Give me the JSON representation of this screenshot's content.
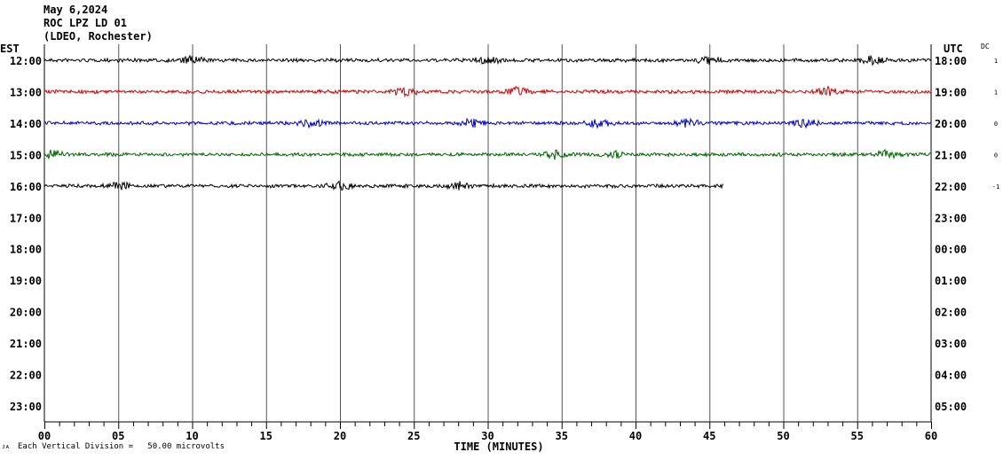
{
  "header": {
    "date": "May 6,2024",
    "station": "ROC LPZ LD 01",
    "network": "(LDEO, Rochester)"
  },
  "left_axis_label": "EST",
  "right_axis_label": "UTC",
  "dc_label": "DC",
  "footer": {
    "scale_note": "Each Vertical Division =   50.00 microvolts",
    "corner_mark": "ᴊᴀ"
  },
  "colors": {
    "background": "#ffffff",
    "grid": "#000000",
    "trace_cycle": [
      "#000000",
      "#cc0000",
      "#0000cc",
      "#006600"
    ]
  },
  "chart_data": {
    "type": "line",
    "title": "",
    "xlabel": "TIME (MINUTES)",
    "ylabel": "",
    "xlim": [
      0,
      60
    ],
    "x_ticks": [
      "00",
      "05",
      "10",
      "15",
      "20",
      "25",
      "30",
      "35",
      "40",
      "45",
      "50",
      "55",
      "60"
    ],
    "rows_est": [
      "12:00",
      "13:00",
      "14:00",
      "15:00",
      "16:00",
      "17:00",
      "18:00",
      "19:00",
      "20:00",
      "21:00",
      "22:00",
      "23:00"
    ],
    "rows_utc": [
      "18:00",
      "19:00",
      "20:00",
      "21:00",
      "22:00",
      "23:00",
      "00:00",
      "01:00",
      "02:00",
      "03:00",
      "04:00",
      "05:00"
    ],
    "dc_offsets": [
      "1",
      "1",
      "0",
      "0",
      "-1"
    ],
    "series": [
      {
        "row": "12:00",
        "end_minute": 60,
        "color": "#000000",
        "bursts": [
          10,
          56,
          45,
          30
        ]
      },
      {
        "row": "13:00",
        "end_minute": 60,
        "color": "#cc0000",
        "bursts": [
          24.5,
          32,
          53
        ]
      },
      {
        "row": "14:00",
        "end_minute": 60,
        "color": "#0000cc",
        "bursts": [
          18,
          29,
          37.5,
          43.5,
          51.5
        ]
      },
      {
        "row": "15:00",
        "end_minute": 60,
        "color": "#006600",
        "bursts": [
          0.5,
          34.5,
          38.5,
          57
        ]
      },
      {
        "row": "16:00",
        "end_minute": 46,
        "color": "#000000",
        "bursts": [
          5,
          20,
          28
        ]
      }
    ]
  }
}
